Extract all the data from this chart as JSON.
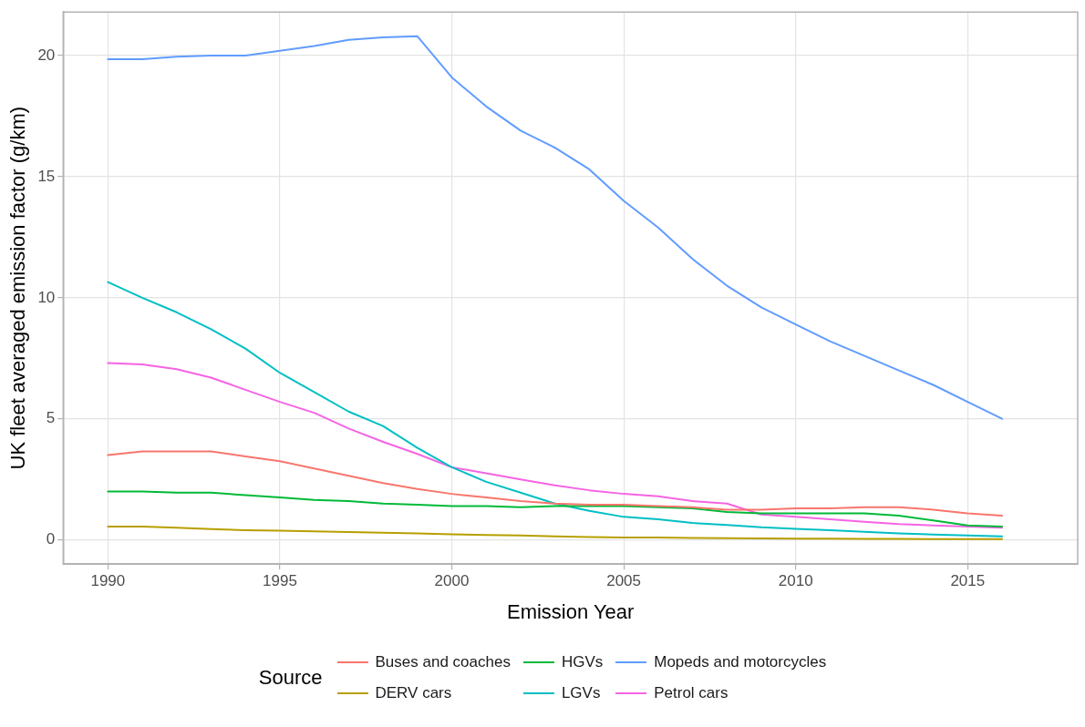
{
  "chart_data": {
    "type": "line",
    "xlabel": "Emission Year",
    "ylabel": "UK fleet averaged emission factor (g/km)",
    "legend_title": "Source",
    "legend": "bottom",
    "grid": true,
    "marker": "none",
    "line_style": "solid",
    "x": [
      1990,
      1991,
      1992,
      1993,
      1994,
      1995,
      1996,
      1997,
      1998,
      1999,
      2000,
      2001,
      2002,
      2003,
      2004,
      2005,
      2006,
      2007,
      2008,
      2009,
      2010,
      2011,
      2012,
      2013,
      2014,
      2015,
      2016
    ],
    "xlim": [
      1988.7,
      2018.2
    ],
    "xticks": [
      1990,
      1995,
      2000,
      2005,
      2010,
      2015
    ],
    "ylim": [
      -1,
      21.8
    ],
    "yticks": [
      0,
      5,
      10,
      15,
      20
    ],
    "series": [
      {
        "name": "Buses and coaches",
        "color": "#f8766d",
        "values": [
          3.5,
          3.65,
          3.65,
          3.65,
          3.45,
          3.25,
          2.95,
          2.65,
          2.35,
          2.1,
          1.9,
          1.75,
          1.6,
          1.5,
          1.45,
          1.45,
          1.4,
          1.35,
          1.25,
          1.25,
          1.3,
          1.3,
          1.35,
          1.35,
          1.25,
          1.1,
          1.0
        ]
      },
      {
        "name": "DERV cars",
        "color": "#b79f00",
        "values": [
          0.55,
          0.55,
          0.5,
          0.45,
          0.4,
          0.38,
          0.35,
          0.32,
          0.3,
          0.27,
          0.23,
          0.2,
          0.18,
          0.15,
          0.12,
          0.1,
          0.1,
          0.08,
          0.07,
          0.06,
          0.05,
          0.05,
          0.04,
          0.04,
          0.03,
          0.03,
          0.03
        ]
      },
      {
        "name": "HGVs",
        "color": "#00ba38",
        "values": [
          2.0,
          2.0,
          1.95,
          1.95,
          1.85,
          1.75,
          1.65,
          1.6,
          1.5,
          1.45,
          1.4,
          1.4,
          1.35,
          1.4,
          1.4,
          1.4,
          1.35,
          1.3,
          1.15,
          1.1,
          1.1,
          1.1,
          1.1,
          1.0,
          0.8,
          0.6,
          0.55
        ]
      },
      {
        "name": "LGVs",
        "color": "#00bfc4",
        "values": [
          10.65,
          10.0,
          9.4,
          8.7,
          7.9,
          6.9,
          6.1,
          5.3,
          4.7,
          3.8,
          3.0,
          2.4,
          1.95,
          1.5,
          1.2,
          0.95,
          0.85,
          0.7,
          0.62,
          0.52,
          0.46,
          0.4,
          0.33,
          0.27,
          0.22,
          0.18,
          0.15
        ]
      },
      {
        "name": "Mopeds and motorcycles",
        "color": "#619cff",
        "values": [
          19.85,
          19.85,
          19.95,
          20.0,
          20.0,
          20.2,
          20.4,
          20.65,
          20.75,
          20.8,
          19.1,
          17.9,
          16.9,
          16.2,
          15.3,
          14.0,
          12.9,
          11.6,
          10.5,
          9.6,
          8.9,
          8.2,
          7.6,
          7.0,
          6.4,
          5.7,
          5.0
        ]
      },
      {
        "name": "Petrol cars",
        "color": "#f564e3",
        "values": [
          7.3,
          7.25,
          7.05,
          6.7,
          6.2,
          5.7,
          5.25,
          4.6,
          4.05,
          3.55,
          3.0,
          2.75,
          2.5,
          2.25,
          2.05,
          1.9,
          1.8,
          1.6,
          1.5,
          1.05,
          0.95,
          0.85,
          0.75,
          0.65,
          0.6,
          0.55,
          0.5
        ]
      }
    ]
  }
}
